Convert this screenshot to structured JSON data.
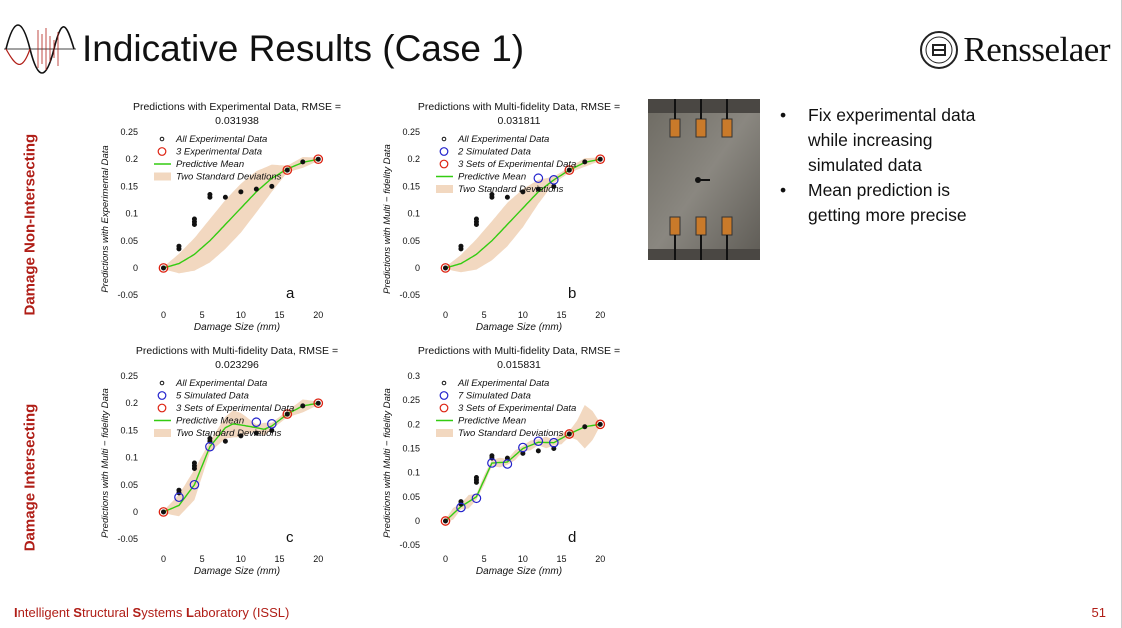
{
  "slide": {
    "title": "Indicative Results (Case 1)",
    "logo_text": "Rensselaer",
    "row_labels": [
      "Damage Non-Intersecting",
      "Damage Intersecting"
    ],
    "bullets": [
      [
        "Fix experimental data",
        "while increasing",
        "simulated data"
      ],
      [
        "Mean prediction is",
        "getting more precise"
      ]
    ],
    "footer": {
      "i": "I",
      "i_rest": "ntelligent ",
      "s": "S",
      "s_rest": "tructural ",
      "s2": "S",
      "s2_rest": "ystems ",
      "l": "L",
      "l_rest": "aboratory (ISSL)"
    },
    "page_number": "51",
    "colors": {
      "accent": "#b01e17",
      "mean": "#33cc11",
      "band": "#f2d8c0"
    }
  },
  "chart_data": [
    {
      "type": "line",
      "panel_letter": "a",
      "title": "Predictions with Experimental Data, RMSE =",
      "title2": "0.031938",
      "xlabel": "Damage Size (mm)",
      "ylabel": "Predictions with Experimental Data",
      "xlim": [
        -2,
        21
      ],
      "ylim": [
        -0.07,
        0.25
      ],
      "xticks": [
        0,
        5,
        10,
        15,
        20
      ],
      "yticks": [
        -0.05,
        0,
        0.05,
        0.1,
        0.15,
        0.2,
        0.25
      ],
      "legend": [
        "All Experimental Data",
        "3 Experimental Data",
        "Predictive Mean",
        "Two Standard Deviations"
      ],
      "all_data": [
        [
          0,
          0
        ],
        [
          2,
          0.035
        ],
        [
          2,
          0.04
        ],
        [
          4,
          0.08
        ],
        [
          4,
          0.085
        ],
        [
          4,
          0.09
        ],
        [
          6,
          0.13
        ],
        [
          6,
          0.135
        ],
        [
          8,
          0.13
        ],
        [
          10,
          0.14
        ],
        [
          12,
          0.145
        ],
        [
          14,
          0.15
        ],
        [
          16,
          0.18
        ],
        [
          18,
          0.195
        ],
        [
          20,
          0.2
        ]
      ],
      "exp_points": [
        [
          0,
          0
        ],
        [
          16,
          0.18
        ],
        [
          20,
          0.2
        ]
      ],
      "sim_points": [],
      "mean": [
        [
          0,
          0
        ],
        [
          2,
          0.008
        ],
        [
          4,
          0.025
        ],
        [
          6,
          0.05
        ],
        [
          8,
          0.08
        ],
        [
          10,
          0.11
        ],
        [
          12,
          0.14
        ],
        [
          14,
          0.165
        ],
        [
          16,
          0.182
        ],
        [
          18,
          0.194
        ],
        [
          20,
          0.2
        ]
      ],
      "band_half": [
        [
          0,
          0.002
        ],
        [
          2,
          0.018
        ],
        [
          4,
          0.03
        ],
        [
          6,
          0.04
        ],
        [
          8,
          0.045
        ],
        [
          10,
          0.045
        ],
        [
          12,
          0.038
        ],
        [
          14,
          0.025
        ],
        [
          16,
          0.006
        ],
        [
          18,
          0.01
        ],
        [
          20,
          0.003
        ]
      ]
    },
    {
      "type": "line",
      "panel_letter": "b",
      "title": "Predictions with Multi-fidelity Data, RMSE =",
      "title2": "0.031811",
      "xlabel": "Damage Size (mm)",
      "ylabel": "Predictions with Multi − fidelity Data",
      "xlim": [
        -2,
        21
      ],
      "ylim": [
        -0.07,
        0.25
      ],
      "xticks": [
        0,
        5,
        10,
        15,
        20
      ],
      "yticks": [
        -0.05,
        0,
        0.05,
        0.1,
        0.15,
        0.2,
        0.25
      ],
      "legend": [
        "All Experimental Data",
        "2 Simulated Data",
        "3 Sets of Experimental Data",
        "Predictive Mean",
        "Two Standard Deviations"
      ],
      "all_data": [
        [
          0,
          0
        ],
        [
          2,
          0.035
        ],
        [
          2,
          0.04
        ],
        [
          4,
          0.08
        ],
        [
          4,
          0.085
        ],
        [
          4,
          0.09
        ],
        [
          6,
          0.13
        ],
        [
          6,
          0.135
        ],
        [
          8,
          0.13
        ],
        [
          10,
          0.14
        ],
        [
          12,
          0.145
        ],
        [
          14,
          0.15
        ],
        [
          16,
          0.18
        ],
        [
          18,
          0.195
        ],
        [
          20,
          0.2
        ]
      ],
      "exp_points": [
        [
          0,
          0
        ],
        [
          16,
          0.18
        ],
        [
          20,
          0.2
        ]
      ],
      "sim_points": [
        [
          12,
          0.165
        ],
        [
          14,
          0.162
        ]
      ],
      "mean": [
        [
          0,
          0
        ],
        [
          2,
          0.008
        ],
        [
          4,
          0.025
        ],
        [
          6,
          0.05
        ],
        [
          8,
          0.08
        ],
        [
          10,
          0.11
        ],
        [
          12,
          0.14
        ],
        [
          14,
          0.162
        ],
        [
          16,
          0.18
        ],
        [
          18,
          0.194
        ],
        [
          20,
          0.2
        ]
      ],
      "band_half": [
        [
          0,
          0.002
        ],
        [
          2,
          0.016
        ],
        [
          4,
          0.028
        ],
        [
          6,
          0.036
        ],
        [
          8,
          0.04
        ],
        [
          10,
          0.035
        ],
        [
          12,
          0.022
        ],
        [
          14,
          0.006
        ],
        [
          16,
          0.005
        ],
        [
          18,
          0.008
        ],
        [
          20,
          0.003
        ]
      ]
    },
    {
      "type": "line",
      "panel_letter": "c",
      "title": "Predictions with Multi-fidelity Data, RMSE =",
      "title2": "0.023296",
      "xlabel": "Damage Size (mm)",
      "ylabel": "Predictions with Multi − fidelity Data",
      "xlim": [
        -2,
        21
      ],
      "ylim": [
        -0.07,
        0.25
      ],
      "xticks": [
        0,
        5,
        10,
        15,
        20
      ],
      "yticks": [
        -0.05,
        0,
        0.05,
        0.1,
        0.15,
        0.2,
        0.25
      ],
      "legend": [
        "All Experimental Data",
        "5 Simulated Data",
        "3 Sets of Experimental Data",
        "Predictive Mean",
        "Two Standard Deviations"
      ],
      "all_data": [
        [
          0,
          0
        ],
        [
          2,
          0.035
        ],
        [
          2,
          0.04
        ],
        [
          4,
          0.08
        ],
        [
          4,
          0.085
        ],
        [
          4,
          0.09
        ],
        [
          6,
          0.13
        ],
        [
          6,
          0.135
        ],
        [
          8,
          0.13
        ],
        [
          10,
          0.14
        ],
        [
          12,
          0.145
        ],
        [
          14,
          0.15
        ],
        [
          16,
          0.18
        ],
        [
          18,
          0.195
        ],
        [
          20,
          0.2
        ]
      ],
      "exp_points": [
        [
          0,
          0
        ],
        [
          16,
          0.18
        ],
        [
          20,
          0.2
        ]
      ],
      "sim_points": [
        [
          2,
          0.027
        ],
        [
          4,
          0.05
        ],
        [
          6,
          0.12
        ],
        [
          12,
          0.165
        ],
        [
          14,
          0.162
        ]
      ],
      "mean": [
        [
          0,
          0
        ],
        [
          2,
          0.012
        ],
        [
          4,
          0.05
        ],
        [
          6,
          0.12
        ],
        [
          8,
          0.155
        ],
        [
          9,
          0.162
        ],
        [
          10,
          0.16
        ],
        [
          12,
          0.155
        ],
        [
          13,
          0.152
        ],
        [
          14,
          0.158
        ],
        [
          16,
          0.18
        ],
        [
          18,
          0.195
        ],
        [
          20,
          0.2
        ]
      ],
      "band_half": [
        [
          0,
          0.002
        ],
        [
          2,
          0.02
        ],
        [
          4,
          0.028
        ],
        [
          6,
          0.01
        ],
        [
          8,
          0.02
        ],
        [
          9,
          0.025
        ],
        [
          10,
          0.022
        ],
        [
          12,
          0.006
        ],
        [
          13,
          0.012
        ],
        [
          14,
          0.006
        ],
        [
          16,
          0.006
        ],
        [
          18,
          0.012
        ],
        [
          20,
          0.003
        ]
      ]
    },
    {
      "type": "line",
      "panel_letter": "d",
      "title": "Predictions with Multi-fidelity Data, RMSE =",
      "title2": "0.015831",
      "xlabel": "Damage Size (mm)",
      "ylabel": "Predictions with Multi − fidelity Data",
      "xlim": [
        -2,
        21
      ],
      "ylim": [
        -0.06,
        0.3
      ],
      "xticks": [
        0,
        5,
        10,
        15,
        20
      ],
      "yticks": [
        -0.05,
        0,
        0.05,
        0.1,
        0.15,
        0.2,
        0.25,
        0.3
      ],
      "legend": [
        "All Experimental Data",
        "7 Simulated Data",
        "3 Sets of Experimental Data",
        "Predictive Mean",
        "Two Standard Deviations"
      ],
      "all_data": [
        [
          0,
          0
        ],
        [
          2,
          0.035
        ],
        [
          2,
          0.04
        ],
        [
          4,
          0.08
        ],
        [
          4,
          0.085
        ],
        [
          4,
          0.09
        ],
        [
          6,
          0.13
        ],
        [
          6,
          0.135
        ],
        [
          8,
          0.13
        ],
        [
          10,
          0.14
        ],
        [
          12,
          0.145
        ],
        [
          14,
          0.15
        ],
        [
          16,
          0.18
        ],
        [
          18,
          0.195
        ],
        [
          20,
          0.2
        ]
      ],
      "exp_points": [
        [
          0,
          0
        ],
        [
          16,
          0.18
        ],
        [
          20,
          0.2
        ]
      ],
      "sim_points": [
        [
          2,
          0.028
        ],
        [
          4,
          0.047
        ],
        [
          6,
          0.12
        ],
        [
          8,
          0.118
        ],
        [
          10,
          0.152
        ],
        [
          12,
          0.165
        ],
        [
          14,
          0.162
        ]
      ],
      "mean": [
        [
          0,
          0
        ],
        [
          2,
          0.03
        ],
        [
          4,
          0.05
        ],
        [
          6,
          0.12
        ],
        [
          8,
          0.122
        ],
        [
          10,
          0.15
        ],
        [
          12,
          0.163
        ],
        [
          14,
          0.162
        ],
        [
          16,
          0.18
        ],
        [
          18,
          0.195
        ],
        [
          20,
          0.2
        ]
      ],
      "band_half": [
        [
          0,
          0.003
        ],
        [
          1,
          0.012
        ],
        [
          2,
          0.006
        ],
        [
          3,
          0.014
        ],
        [
          4,
          0.006
        ],
        [
          5,
          0.01
        ],
        [
          6,
          0.006
        ],
        [
          7,
          0.01
        ],
        [
          8,
          0.006
        ],
        [
          9,
          0.01
        ],
        [
          10,
          0.006
        ],
        [
          11,
          0.01
        ],
        [
          12,
          0.006
        ],
        [
          13,
          0.012
        ],
        [
          14,
          0.006
        ],
        [
          15,
          0.012
        ],
        [
          16,
          0.006
        ],
        [
          17,
          0.02
        ],
        [
          18,
          0.045
        ],
        [
          19,
          0.03
        ],
        [
          20,
          0.003
        ]
      ]
    }
  ]
}
